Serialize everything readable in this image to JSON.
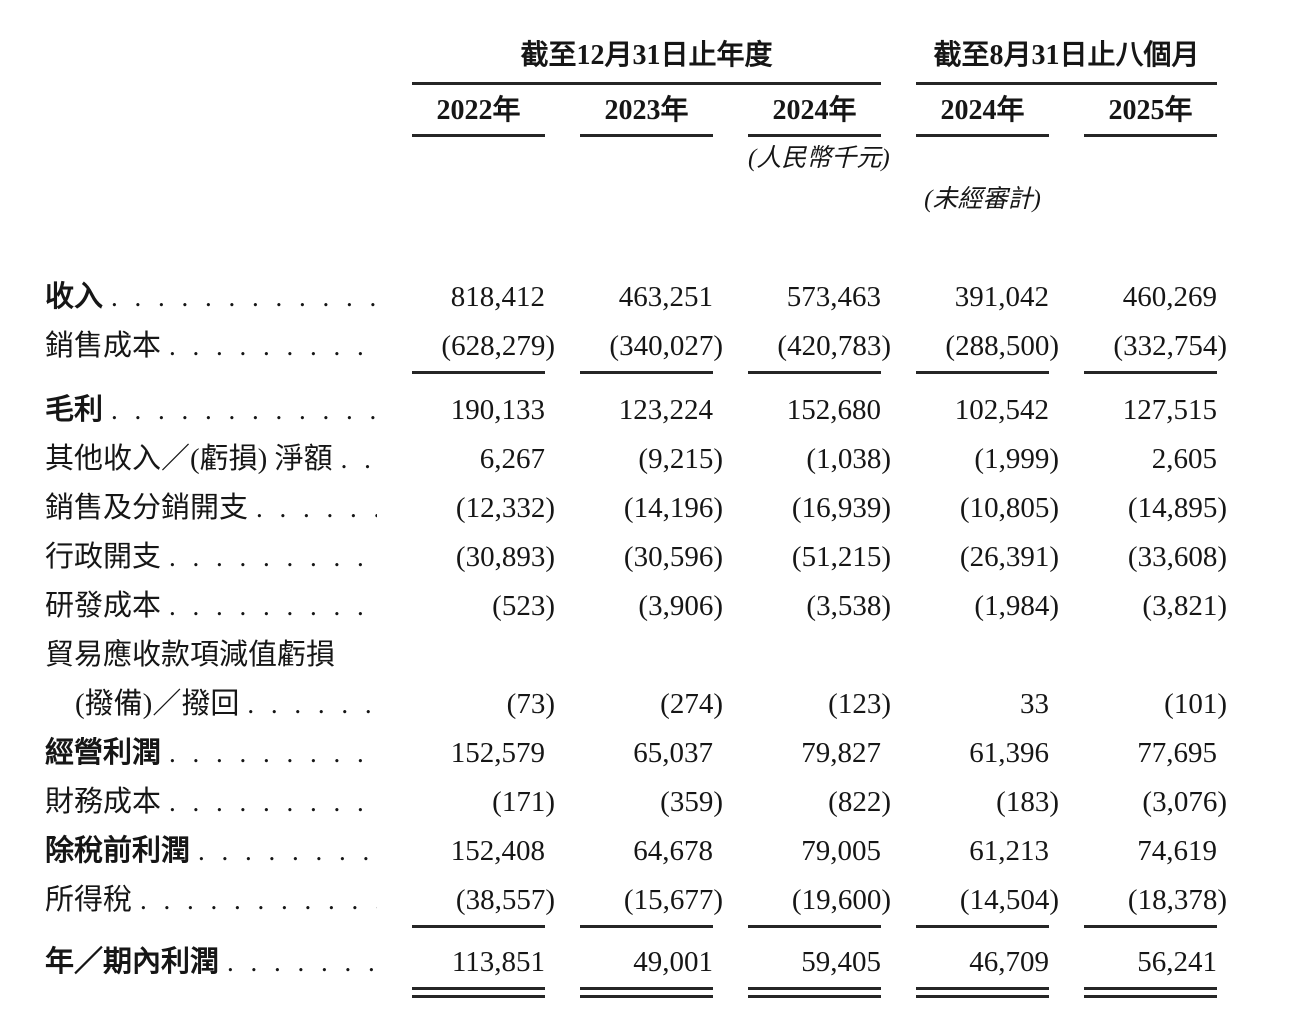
{
  "header": {
    "group1_label": "截至12月31日止年度",
    "group2_label": "截至8月31日止八個月",
    "years": [
      "2022年",
      "2023年",
      "2024年",
      "2024年",
      "2025年"
    ],
    "unit_note": "(人民幣千元)",
    "audit_note": "(未經審計)"
  },
  "rows": [
    {
      "label": "收入",
      "bold": true,
      "leader": true,
      "values": [
        "818,412",
        "463,251",
        "573,463",
        "391,042",
        "460,269"
      ]
    },
    {
      "label": "銷售成本",
      "bold": false,
      "leader": true,
      "rule_below": "single",
      "values": [
        "(628,279)",
        "(340,027)",
        "(420,783)",
        "(288,500)",
        "(332,754)"
      ]
    },
    {
      "label": "毛利",
      "bold": true,
      "leader": true,
      "gap_above": 12,
      "values": [
        "190,133",
        "123,224",
        "152,680",
        "102,542",
        "127,515"
      ]
    },
    {
      "label": "其他收入／(虧損) 淨額",
      "bold": false,
      "leader": true,
      "values": [
        "6,267",
        "(9,215)",
        "(1,038)",
        "(1,999)",
        "2,605"
      ]
    },
    {
      "label": "銷售及分銷開支",
      "bold": false,
      "leader": true,
      "values": [
        "(12,332)",
        "(14,196)",
        "(16,939)",
        "(10,805)",
        "(14,895)"
      ]
    },
    {
      "label": "行政開支",
      "bold": false,
      "leader": true,
      "values": [
        "(30,893)",
        "(30,596)",
        "(51,215)",
        "(26,391)",
        "(33,608)"
      ]
    },
    {
      "label": "研發成本",
      "bold": false,
      "leader": true,
      "values": [
        "(523)",
        "(3,906)",
        "(3,538)",
        "(1,984)",
        "(3,821)"
      ]
    },
    {
      "label": "貿易應收款項減值虧損",
      "bold": false,
      "leader": false,
      "values": []
    },
    {
      "label": "(撥備)／撥回",
      "bold": false,
      "leader": true,
      "indent": true,
      "values": [
        "(73)",
        "(274)",
        "(123)",
        "33",
        "(101)"
      ]
    },
    {
      "label": "經營利潤",
      "bold": true,
      "leader": true,
      "values": [
        "152,579",
        "65,037",
        "79,827",
        "61,396",
        "77,695"
      ]
    },
    {
      "label": "財務成本",
      "bold": false,
      "leader": true,
      "values": [
        "(171)",
        "(359)",
        "(822)",
        "(183)",
        "(3,076)"
      ]
    },
    {
      "label": "除稅前利潤",
      "bold": true,
      "leader": true,
      "values": [
        "152,408",
        "64,678",
        "79,005",
        "61,213",
        "74,619"
      ]
    },
    {
      "label": "所得稅",
      "bold": false,
      "leader": true,
      "rule_below": "single",
      "values": [
        "(38,557)",
        "(15,677)",
        "(19,600)",
        "(14,504)",
        "(18,378)"
      ]
    },
    {
      "label": "年／期內利潤",
      "bold": true,
      "leader": true,
      "gap_above": 10,
      "rule_below": "double",
      "values": [
        "113,851",
        "49,001",
        "59,405",
        "46,709",
        "56,241"
      ]
    }
  ]
}
